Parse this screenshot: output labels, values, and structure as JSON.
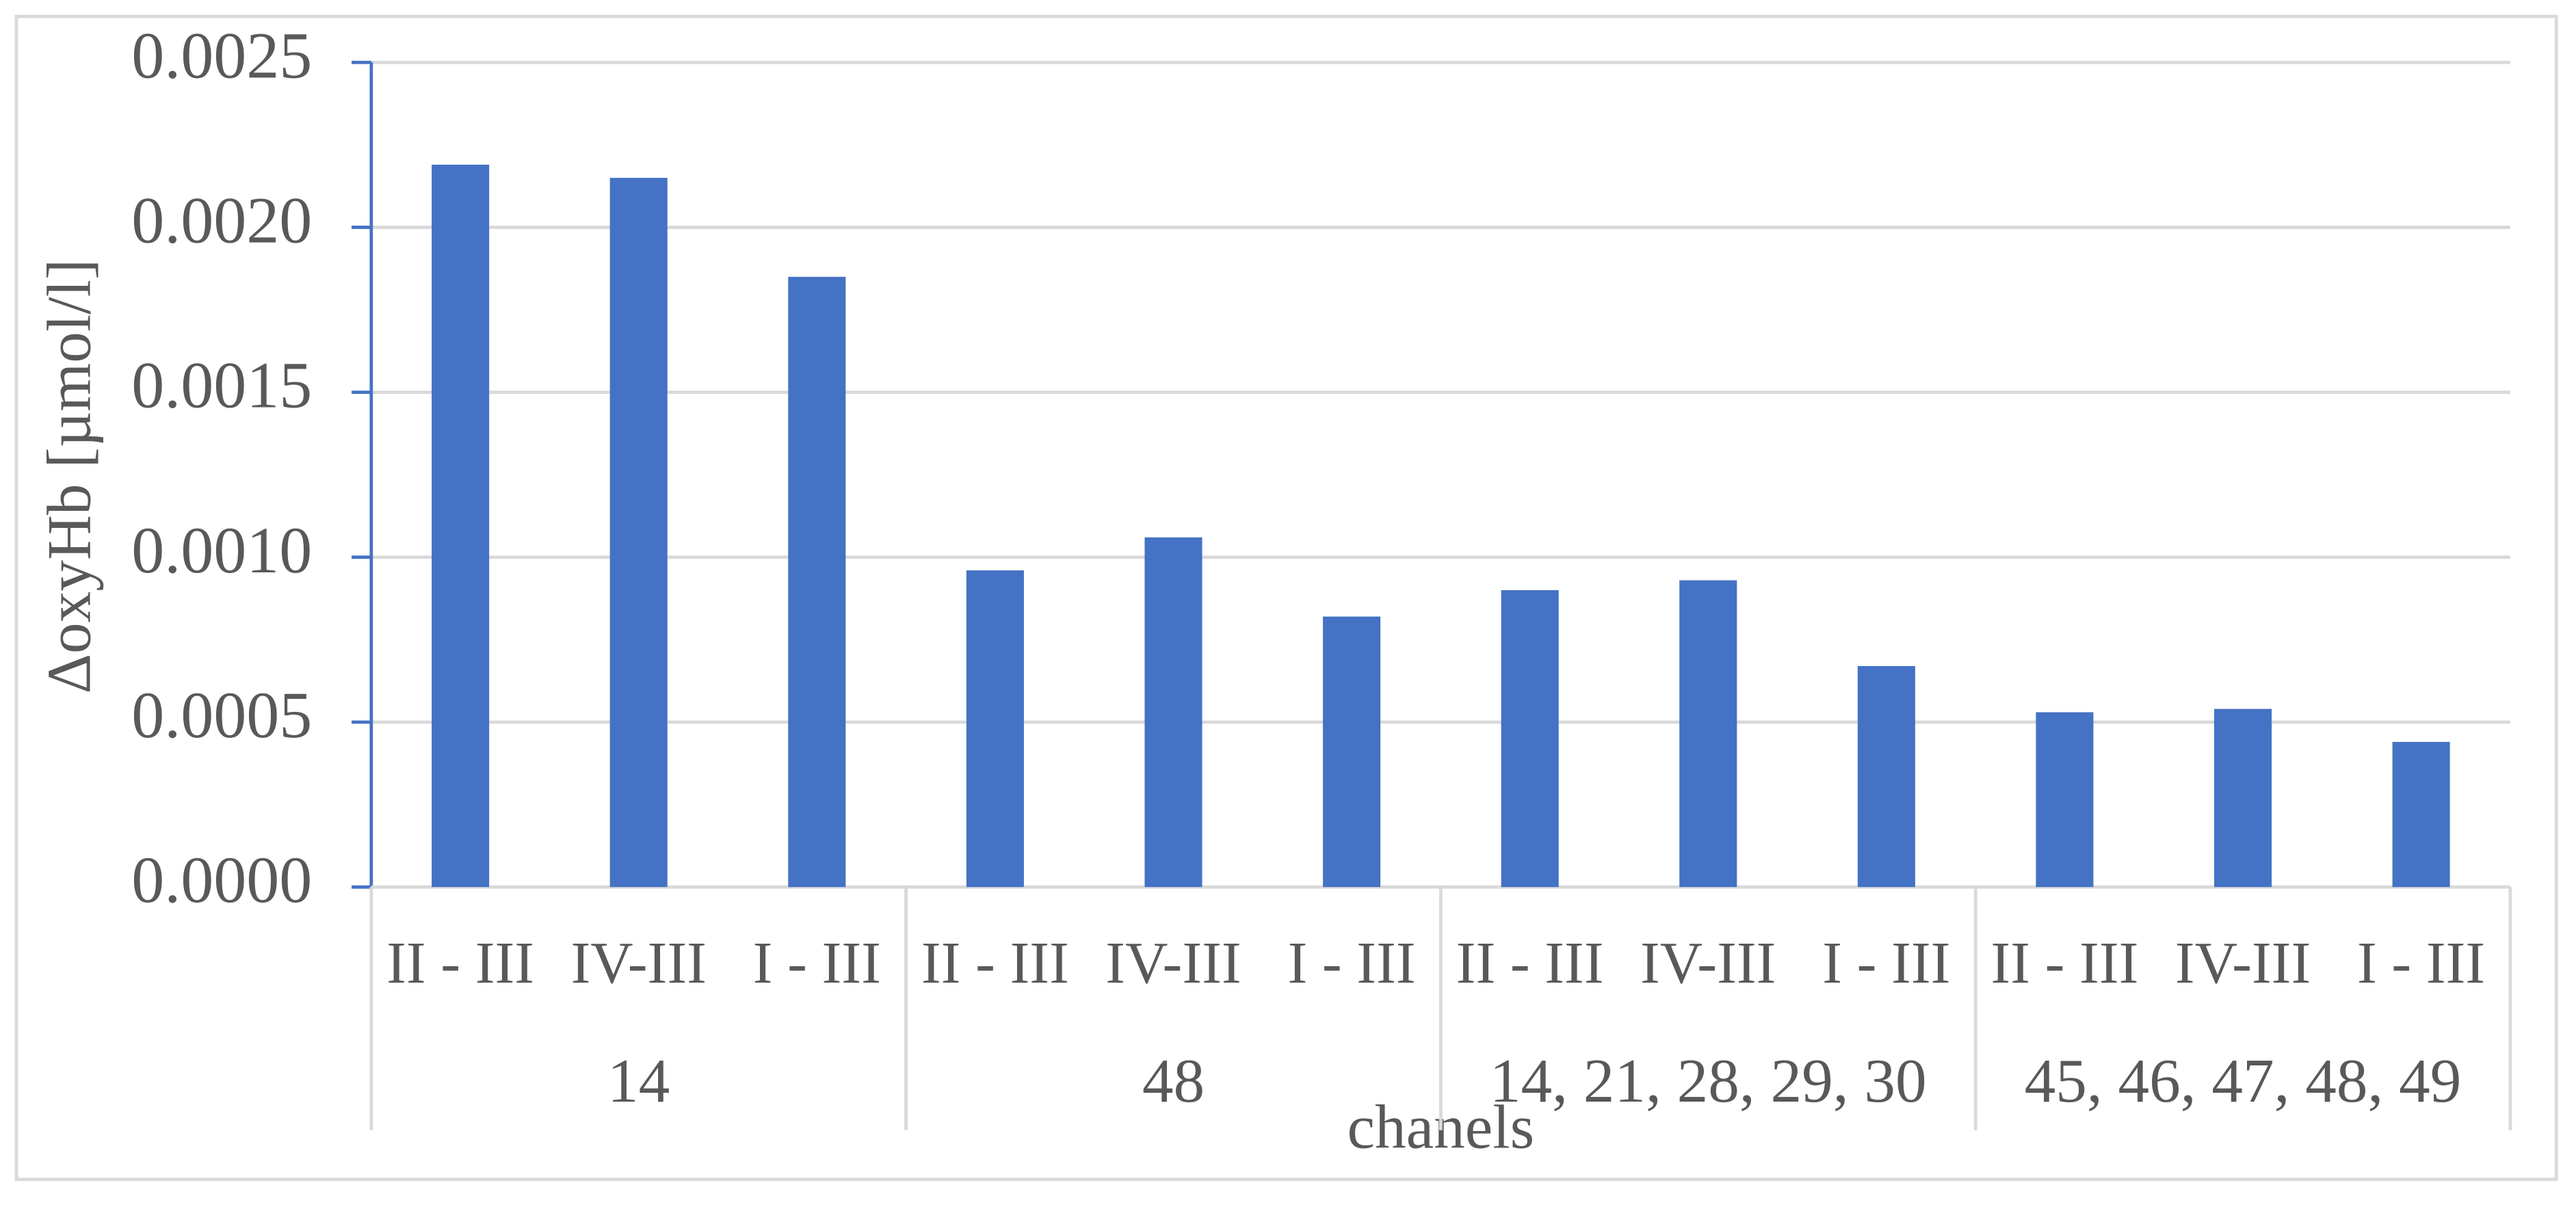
{
  "chart_data": {
    "type": "bar",
    "y_label": "ΔoxyHb [µmol/l]",
    "x_label": "chanels",
    "categories": [
      "II - III",
      "IV-III",
      "I - III",
      "II - III",
      "IV-III",
      "I - III",
      "II - III",
      "IV-III",
      "I - III",
      "II - III",
      "IV-III",
      "I - III"
    ],
    "groups": [
      "14",
      "48",
      "14, 21, 28, 29, 30",
      "45, 46, 47, 48, 49"
    ],
    "values": [
      0.00219,
      0.00215,
      0.00185,
      0.00096,
      0.00106,
      0.00082,
      0.0009,
      0.00093,
      0.00067,
      0.00053,
      0.00054,
      0.00044
    ],
    "color": "#4472c4",
    "ylim": [
      0,
      0.0025
    ],
    "yticks": [
      {
        "value": 0,
        "label": "0.0000"
      },
      {
        "value": 0.0005,
        "label": "0.0005"
      },
      {
        "value": 0.001,
        "label": "0.0010"
      },
      {
        "value": 0.0015,
        "label": "0.0015"
      },
      {
        "value": 0.002,
        "label": "0.0020"
      },
      {
        "value": 0.0025,
        "label": "0.0025"
      }
    ],
    "grid": true
  }
}
